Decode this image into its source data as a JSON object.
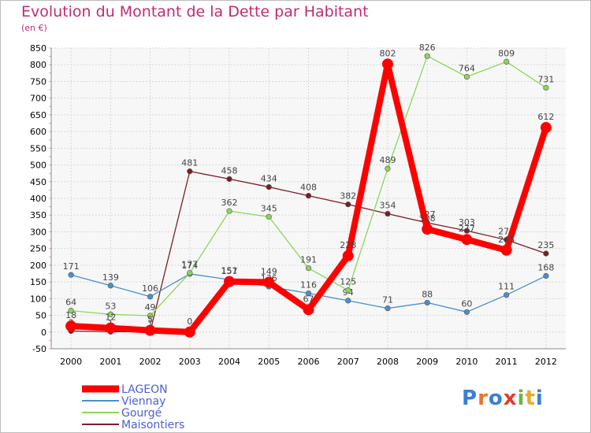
{
  "title": "Evolution du Montant de la Dette par Habitant",
  "subtitle": "(en €)",
  "logo": {
    "text": "Proxiti",
    "colors": [
      "#3a7fd5",
      "#e8742a",
      "#3a7fd5",
      "#e23b2e",
      "#6db33f",
      "#e8a82a",
      "#3a7fd5"
    ]
  },
  "chart_data": {
    "type": "line",
    "x": [
      "2000",
      "2001",
      "2002",
      "2003",
      "2004",
      "2005",
      "2006",
      "2007",
      "2008",
      "2009",
      "2010",
      "2011",
      "2012"
    ],
    "ylim": [
      -50,
      850
    ],
    "yticks": [
      -50,
      0,
      50,
      100,
      150,
      200,
      250,
      300,
      350,
      400,
      450,
      500,
      550,
      600,
      650,
      700,
      750,
      800,
      850
    ],
    "grid": true,
    "legend": "bottom-left",
    "series": [
      {
        "name": "Maisontiers",
        "color": "#7a1e26",
        "values": [
          3,
          1,
          1,
          481,
          458,
          434,
          408,
          382,
          354,
          327,
          303,
          276,
          235
        ]
      },
      {
        "name": "Viennay",
        "color": "#4a8fd0",
        "values": [
          171,
          139,
          106,
          174,
          157,
          136,
          116,
          94,
          71,
          88,
          60,
          111,
          168
        ]
      },
      {
        "name": "Gourgé",
        "color": "#8cd65a",
        "values": [
          64,
          53,
          49,
          177,
          362,
          345,
          191,
          125,
          489,
          826,
          764,
          809,
          731
        ]
      },
      {
        "name": "LAGEON",
        "color": "#ff0000",
        "values": [
          18,
          12,
          5,
          0,
          151,
          149,
          67,
          228,
          802,
          308,
          277,
          245,
          612
        ]
      }
    ]
  }
}
